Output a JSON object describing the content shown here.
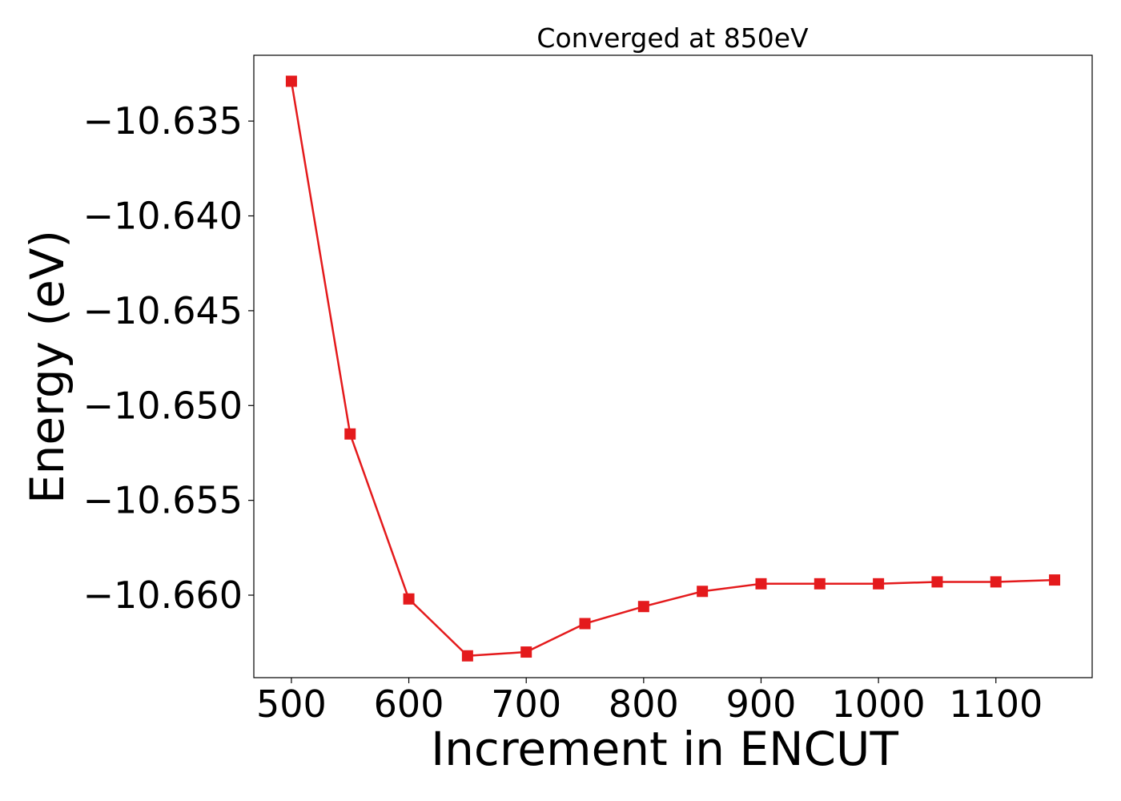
{
  "chart_data": {
    "type": "line",
    "title": "Converged at 850eV",
    "xlabel": "Increment in ENCUT",
    "ylabel": "Energy (eV)",
    "x": [
      500,
      550,
      600,
      650,
      700,
      750,
      800,
      850,
      900,
      950,
      1000,
      1050,
      1100,
      1150
    ],
    "series": [
      {
        "values": [
          -10.6329,
          -10.6515,
          -10.6602,
          -10.6632,
          -10.663,
          -10.6615,
          -10.6606,
          -10.6598,
          -10.6594,
          -10.6594,
          -10.6594,
          -10.6593,
          -10.6593,
          -10.6592
        ],
        "color": "#e41a1c",
        "marker": "square"
      }
    ],
    "xlim": [
      468,
      1182
    ],
    "ylim": [
      -10.66435,
      -10.63153
    ],
    "xticks": [
      500,
      600,
      700,
      800,
      900,
      1000,
      1100
    ],
    "xtick_labels": [
      "500",
      "600",
      "700",
      "800",
      "900",
      "1000",
      "1100"
    ],
    "yticks": [
      -10.635,
      -10.64,
      -10.645,
      -10.65,
      -10.655,
      -10.66
    ],
    "ytick_labels": [
      "−10.635",
      "−10.640",
      "−10.645",
      "−10.650",
      "−10.655",
      "−10.660"
    ],
    "grid": false,
    "legend": false
  }
}
